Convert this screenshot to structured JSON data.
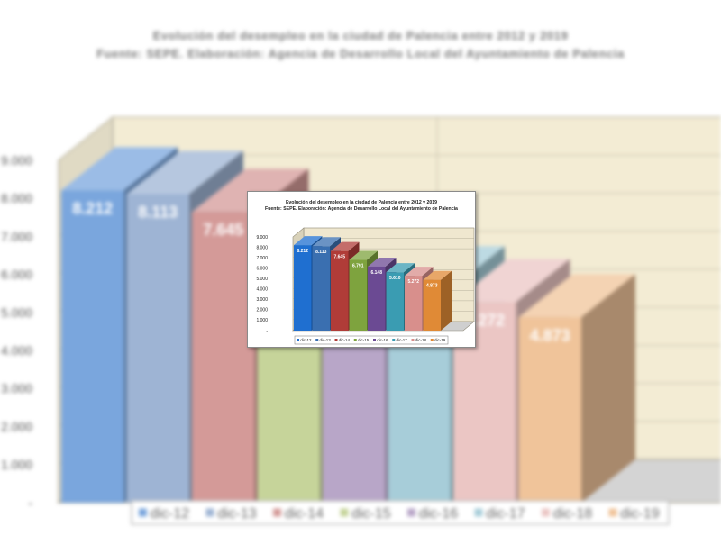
{
  "chart_data": {
    "type": "bar",
    "title": "Evolución del desempleo en la ciudad de Palencia entre 2012 y 2019",
    "subtitle": "Fuente: SEPE. Elaboración: Agencia de Desarrollo Local del Ayuntamiento de Palencia",
    "categories": [
      "dic-12",
      "dic-13",
      "dic-14",
      "dic-15",
      "dic-16",
      "dic-17",
      "dic-18",
      "dic-19"
    ],
    "values": [
      8212,
      8113,
      7645,
      6791,
      6148,
      5610,
      5272,
      4873
    ],
    "value_labels": [
      "8.212",
      "8.113",
      "7.645",
      "6.791",
      "6.148",
      "5.610",
      "5.272",
      "4.873"
    ],
    "y_ticks": [
      "-",
      "1.000",
      "2.000",
      "3.000",
      "4.000",
      "5.000",
      "6.000",
      "7.000",
      "8.000",
      "9.000"
    ],
    "ylim": [
      0,
      9000
    ],
    "grid": true,
    "legend_position": "bottom",
    "style": "3d-bar",
    "colors_front": [
      "#1f6fd0",
      "#3a6fb0",
      "#b03c38",
      "#7ea33e",
      "#6b4a93",
      "#3a9cb2",
      "#d88f8c",
      "#e08a36"
    ],
    "colors_bg": [
      "#7aa6dd",
      "#9eb4d4",
      "#d49a98",
      "#c6d49a",
      "#b8a6c8",
      "#a7cdd9",
      "#ebc6c4",
      "#f0c49a"
    ]
  }
}
